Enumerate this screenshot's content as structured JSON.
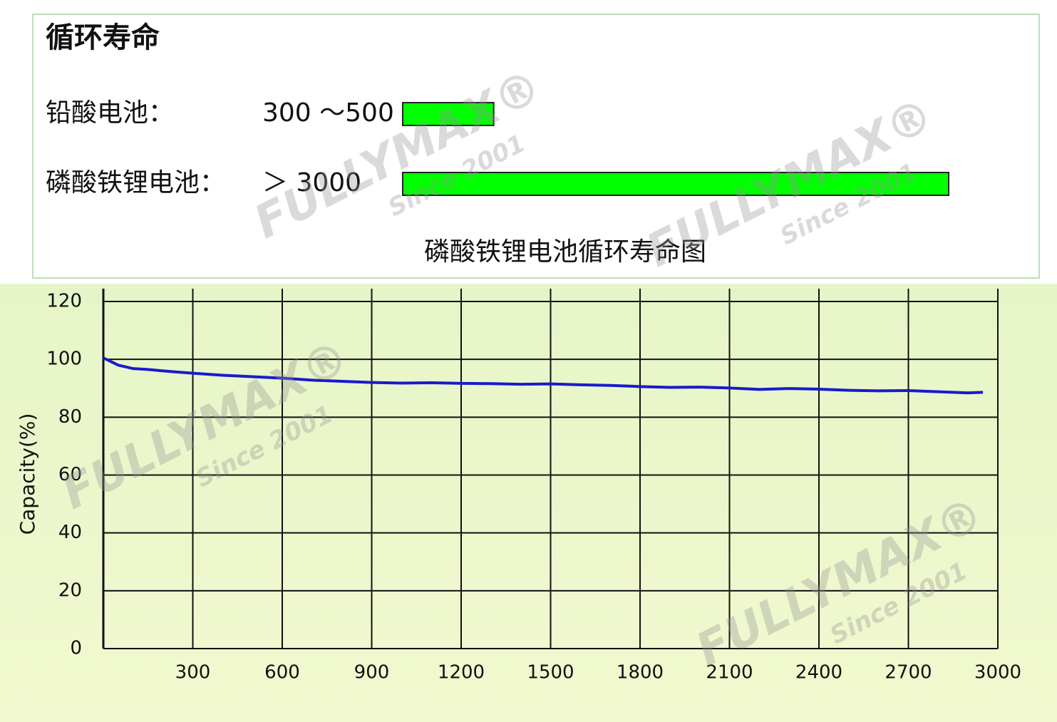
{
  "chart_data": [
    {
      "type": "hbar",
      "title": "循环寿命",
      "categories": [
        "铅酸电池：",
        "磷酸铁锂电池："
      ],
      "values": [
        500,
        3000
      ],
      "value_labels": [
        "300 ～500",
        "＞ 3000"
      ],
      "color": "#00ff00"
    },
    {
      "type": "line",
      "title": "磷酸铁锂电池循环寿命图",
      "ylabel": "Capacity(%)",
      "x": [
        0,
        50,
        100,
        150,
        200,
        300,
        400,
        500,
        600,
        700,
        800,
        900,
        1000,
        1100,
        1200,
        1300,
        1400,
        1500,
        1600,
        1700,
        1800,
        1900,
        2000,
        2100,
        2200,
        2300,
        2400,
        2500,
        2600,
        2700,
        2800,
        2900,
        2950
      ],
      "values": [
        100.5,
        98,
        96.8,
        96.5,
        96,
        95.2,
        94.5,
        94,
        93.5,
        92.8,
        92.4,
        92,
        91.8,
        91.9,
        91.7,
        91.6,
        91.4,
        91.5,
        91.2,
        91,
        90.6,
        90.3,
        90.4,
        90.1,
        89.6,
        89.9,
        89.7,
        89.3,
        89.1,
        89.2,
        88.8,
        88.4,
        88.6
      ],
      "color": "#1a1acc",
      "xlim": [
        0,
        3000
      ],
      "xticks": [
        300,
        600,
        900,
        1200,
        1500,
        1800,
        2100,
        2400,
        2700,
        3000
      ],
      "ylim": [
        0,
        120
      ],
      "yticks": [
        0,
        20,
        40,
        60,
        80,
        100,
        120
      ],
      "grid": true
    }
  ],
  "watermark": {
    "brand": "FULLYMAX®",
    "tagline": "Since 2001"
  }
}
